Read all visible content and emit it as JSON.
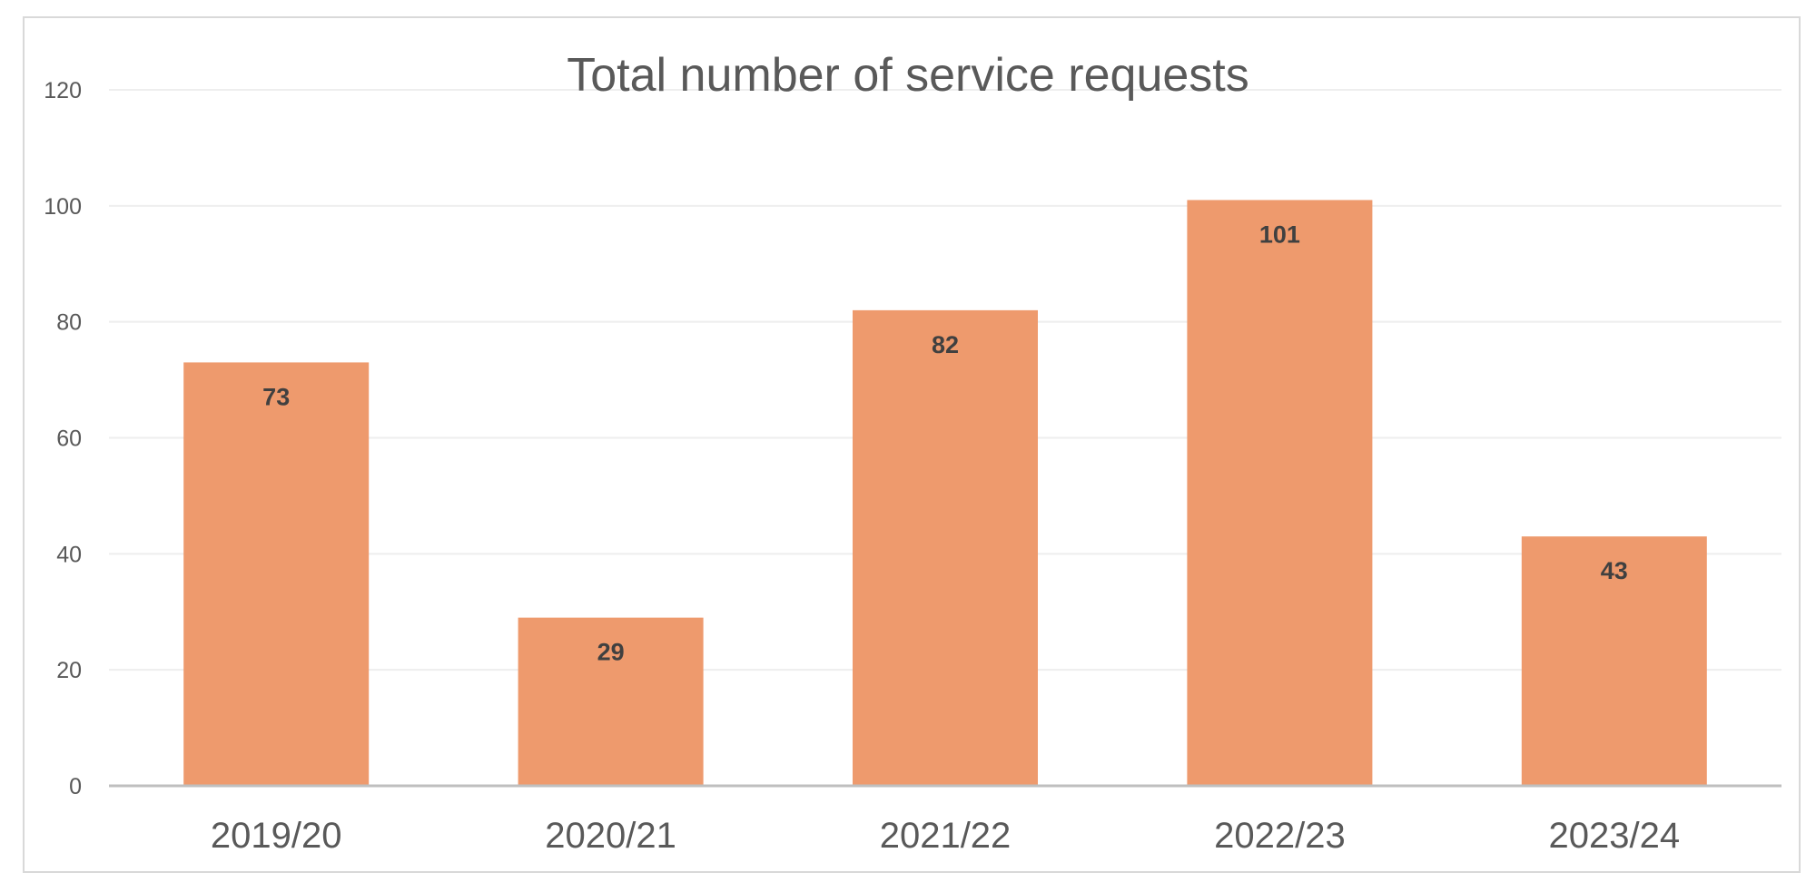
{
  "chart_data": {
    "type": "bar",
    "title": "Total number of service requests",
    "categories": [
      "2019/20",
      "2020/21",
      "2021/22",
      "2022/23",
      "2023/24"
    ],
    "values": [
      73,
      29,
      82,
      101,
      43
    ],
    "data_labels": [
      "73",
      "29",
      "82",
      "101",
      "43"
    ],
    "ylim": [
      0,
      120
    ],
    "yticks": [
      "0",
      "20",
      "40",
      "60",
      "80",
      "100",
      "120"
    ],
    "grid": true,
    "legend": "none",
    "colors": {
      "bar": "#ee9a6d",
      "gridline": "#eeeeee",
      "axis": "#bfbfbf",
      "text": "#595959",
      "label": "#404040"
    }
  }
}
